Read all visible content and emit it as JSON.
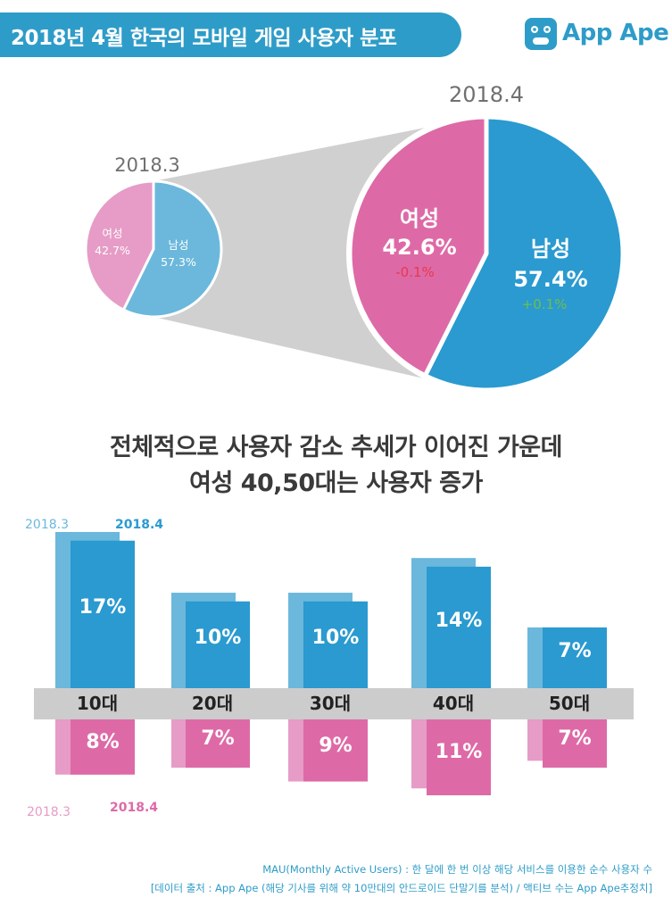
{
  "header": {
    "title": "2018년 4월 한국의 모바일 게임 사용자 분포"
  },
  "logo": {
    "text": "App Ape"
  },
  "colors": {
    "male": "#2a9ad0",
    "male_prev": "#6bb8dc",
    "female": "#dd6aa6",
    "female_prev": "#e69cc6",
    "axis_band": "#cccccc",
    "funnel": "#d0d0d0",
    "down": "#e8384f",
    "up": "#6cc04a"
  },
  "heading": {
    "line1": "전체적으로 사용자 감소 추세가 이어진 가운데",
    "line2": "여성 40,50대는 사용자 증가"
  },
  "chart_data": [
    {
      "type": "pie",
      "title": "2018.3",
      "slices": [
        {
          "label": "남성",
          "value": 57.3,
          "value_label": "57.3%"
        },
        {
          "label": "여성",
          "value": 42.7,
          "value_label": "42.7%"
        }
      ]
    },
    {
      "type": "pie",
      "title": "2018.4",
      "slices": [
        {
          "label": "남성",
          "value": 57.4,
          "value_label": "57.4%",
          "change": "+0.1%"
        },
        {
          "label": "여성",
          "value": 42.6,
          "value_label": "42.6%",
          "change": "-0.1%"
        }
      ]
    },
    {
      "type": "bar",
      "categories": [
        "10대",
        "20대",
        "30대",
        "40대",
        "50대"
      ],
      "male": {
        "prev_label": "2018.3",
        "curr_label": "2018.4",
        "prev_values": [
          18,
          11,
          11,
          15,
          7
        ],
        "curr_values": [
          17,
          10,
          10,
          14,
          7
        ],
        "curr_value_labels": [
          "17%",
          "10%",
          "10%",
          "14%",
          "7%"
        ]
      },
      "female": {
        "prev_label": "2018.3",
        "curr_label": "2018.4",
        "prev_values": [
          8,
          7,
          9,
          10,
          6
        ],
        "curr_values": [
          8,
          7,
          9,
          11,
          7
        ],
        "curr_value_labels": [
          "8%",
          "7%",
          "9%",
          "11%",
          "7%"
        ]
      }
    }
  ],
  "notes": {
    "line1": "MAU(Monthly Active Users) : 한 달에 한 번 이상 해당 서비스를 이용한 순수 사용자 수",
    "line2": "[데이터 출처 : App Ape (해당 기사를 위해 약 10만대의 안드로이드 단말기를 분석) / 액티브 수는 App Ape추정치]"
  }
}
